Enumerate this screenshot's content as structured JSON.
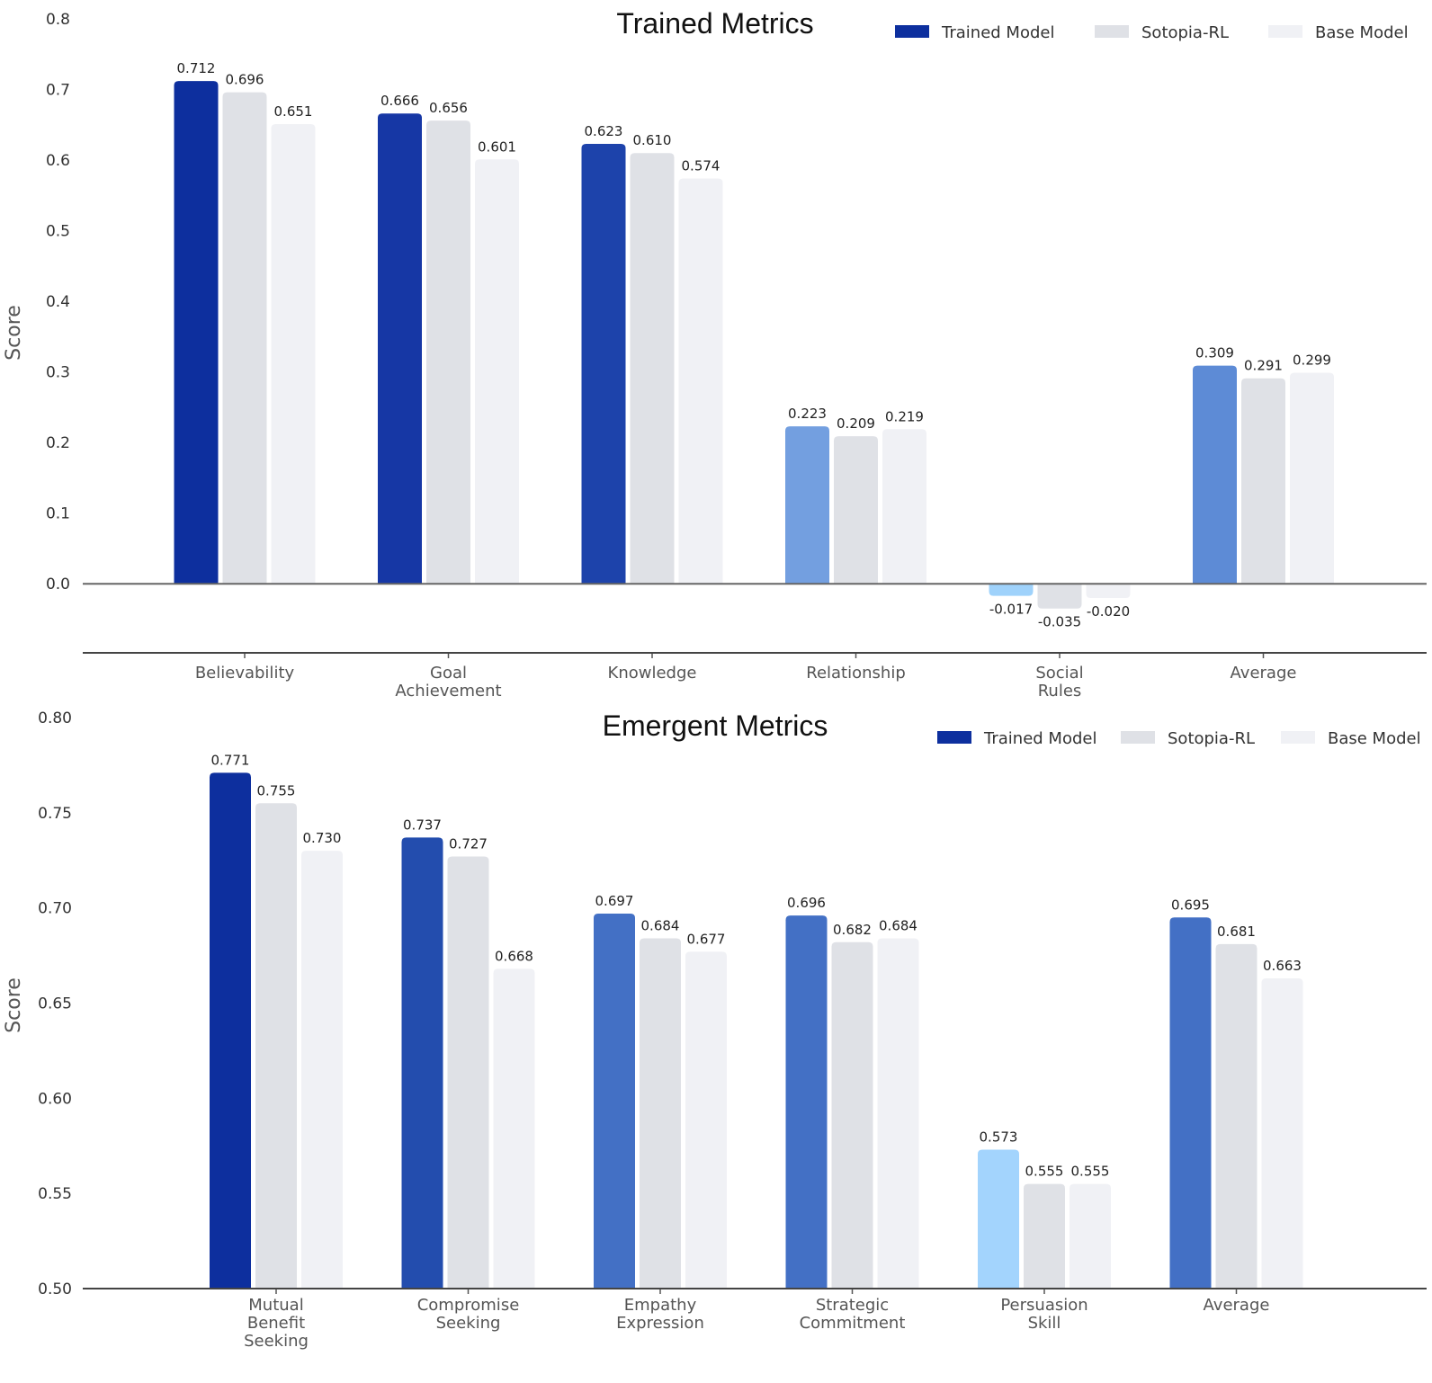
{
  "chart_data": [
    {
      "type": "bar",
      "title": "Trained Metrics",
      "xlabel": "",
      "ylabel": "Score",
      "ylim": [
        -0.085,
        0.8
      ],
      "yticks": [
        "0.0",
        "0.1",
        "0.2",
        "0.3",
        "0.4",
        "0.5",
        "0.6",
        "0.7",
        "0.8"
      ],
      "grid": false,
      "legend_position": "top-right",
      "categories": [
        [
          "Believability"
        ],
        [
          "Goal",
          "Achievement"
        ],
        [
          "Knowledge"
        ],
        [
          "Relationship"
        ],
        [
          "Social",
          "Rules"
        ],
        [
          "Average"
        ]
      ],
      "series": [
        {
          "name": "Trained Model",
          "values": [
            0.712,
            0.666,
            0.623,
            0.223,
            -0.017,
            0.309
          ],
          "value_labels": [
            "0.712",
            "0.666",
            "0.623",
            "0.223",
            "-0.017",
            "0.309"
          ],
          "colors": [
            "#0d2f9e",
            "#1637a5",
            "#1d43ab",
            "#739fe0",
            "#9fd2fb",
            "#5d8bd6"
          ],
          "legend_color": "#0d2f9e"
        },
        {
          "name": "Sotopia-RL",
          "values": [
            0.696,
            0.656,
            0.61,
            0.209,
            -0.035,
            0.291
          ],
          "value_labels": [
            "0.696",
            "0.656",
            "0.610",
            "0.209",
            "-0.035",
            "0.291"
          ],
          "colors": [
            "#dfe1e6",
            "#dfe1e6",
            "#dfe1e6",
            "#dfe1e6",
            "#dfe1e6",
            "#dfe1e6"
          ],
          "legend_color": "#dfe1e6"
        },
        {
          "name": "Base Model",
          "values": [
            0.651,
            0.601,
            0.574,
            0.219,
            -0.02,
            0.299
          ],
          "value_labels": [
            "0.651",
            "0.601",
            "0.574",
            "0.219",
            "-0.020",
            "0.299"
          ],
          "colors": [
            "#f0f1f5",
            "#f0f1f5",
            "#f0f1f5",
            "#f0f1f5",
            "#f0f1f5",
            "#f0f1f5"
          ],
          "legend_color": "#f0f1f5"
        }
      ]
    },
    {
      "type": "bar",
      "title": "Emergent Metrics",
      "xlabel": "",
      "ylabel": "Score",
      "ylim": [
        0.5,
        0.8
      ],
      "yticks": [
        "0.50",
        "0.55",
        "0.60",
        "0.65",
        "0.70",
        "0.75",
        "0.80"
      ],
      "grid": false,
      "legend_position": "top-right",
      "categories": [
        [
          "Mutual",
          "Benefit",
          "Seeking"
        ],
        [
          "Compromise",
          "Seeking"
        ],
        [
          "Empathy",
          "Expression"
        ],
        [
          "Strategic",
          "Commitment"
        ],
        [
          "Persuasion",
          "Skill"
        ],
        [
          "Average"
        ]
      ],
      "series": [
        {
          "name": "Trained Model",
          "values": [
            0.771,
            0.737,
            0.697,
            0.696,
            0.573,
            0.695
          ],
          "value_labels": [
            "0.771",
            "0.737",
            "0.697",
            "0.696",
            "0.573",
            "0.695"
          ],
          "colors": [
            "#0d2f9e",
            "#234dae",
            "#4370c5",
            "#4370c5",
            "#a3d4fd",
            "#4370c5"
          ],
          "legend_color": "#0d2f9e"
        },
        {
          "name": "Sotopia-RL",
          "values": [
            0.755,
            0.727,
            0.684,
            0.682,
            0.555,
            0.681
          ],
          "value_labels": [
            "0.755",
            "0.727",
            "0.684",
            "0.682",
            "0.555",
            "0.681"
          ],
          "colors": [
            "#dfe1e6",
            "#dfe1e6",
            "#dfe1e6",
            "#dfe1e6",
            "#dfe1e6",
            "#dfe1e6"
          ],
          "legend_color": "#dfe1e6"
        },
        {
          "name": "Base Model",
          "values": [
            0.73,
            0.668,
            0.677,
            0.684,
            0.555,
            0.663
          ],
          "value_labels": [
            "0.730",
            "0.668",
            "0.677",
            "0.684",
            "0.555",
            "0.663"
          ],
          "colors": [
            "#f0f1f5",
            "#f0f1f5",
            "#f0f1f5",
            "#f0f1f5",
            "#f0f1f5",
            "#f0f1f5"
          ],
          "legend_color": "#f0f1f5"
        }
      ]
    }
  ]
}
